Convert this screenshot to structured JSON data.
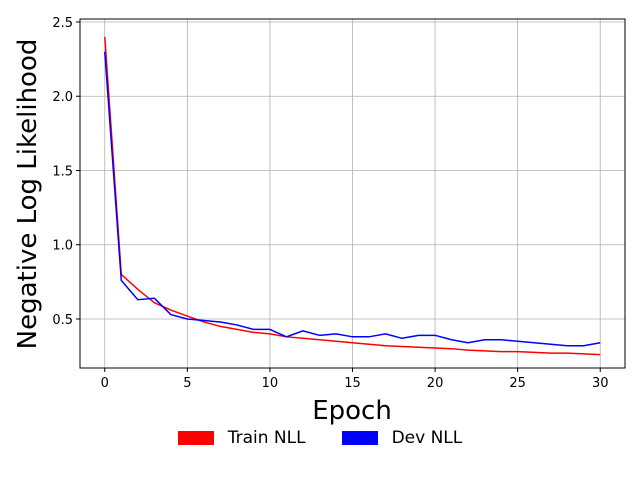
{
  "chart_data": {
    "type": "line",
    "title": "",
    "xlabel": "Epoch",
    "ylabel": "Negative Log Likelihood",
    "xlim": [
      -1.5,
      31.5
    ],
    "ylim": [
      0.17,
      2.52
    ],
    "xticks": [
      0,
      5,
      10,
      15,
      20,
      25,
      30
    ],
    "yticks": [
      0.5,
      1.0,
      1.5,
      2.0,
      2.5
    ],
    "xtick_labels": [
      "0",
      "5",
      "10",
      "15",
      "20",
      "25",
      "30"
    ],
    "ytick_labels": [
      "0.5",
      "1.0",
      "1.5",
      "2.0",
      "2.5"
    ],
    "grid": true,
    "legend_position": "bottom-center",
    "x": [
      0,
      1,
      2,
      3,
      4,
      5,
      6,
      7,
      8,
      9,
      10,
      11,
      12,
      13,
      14,
      15,
      16,
      17,
      18,
      19,
      20,
      21,
      22,
      23,
      24,
      25,
      26,
      27,
      28,
      29,
      30
    ],
    "series": [
      {
        "name": "Train NLL",
        "color": "#ff0000",
        "values": [
          2.4,
          0.8,
          0.7,
          0.61,
          0.56,
          0.52,
          0.48,
          0.45,
          0.43,
          0.41,
          0.4,
          0.38,
          0.37,
          0.36,
          0.35,
          0.34,
          0.33,
          0.32,
          0.315,
          0.31,
          0.305,
          0.3,
          0.29,
          0.285,
          0.28,
          0.28,
          0.275,
          0.27,
          0.27,
          0.265,
          0.26
        ]
      },
      {
        "name": "Dev NLL",
        "color": "#0000ff",
        "values": [
          2.3,
          0.76,
          0.63,
          0.64,
          0.53,
          0.5,
          0.49,
          0.48,
          0.46,
          0.43,
          0.43,
          0.38,
          0.42,
          0.39,
          0.4,
          0.38,
          0.38,
          0.4,
          0.37,
          0.39,
          0.39,
          0.36,
          0.34,
          0.36,
          0.36,
          0.35,
          0.34,
          0.33,
          0.32,
          0.32,
          0.34
        ]
      }
    ]
  }
}
